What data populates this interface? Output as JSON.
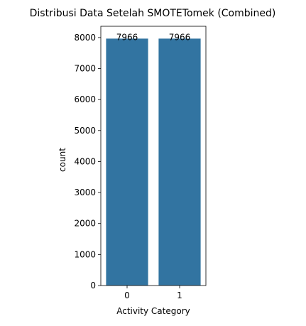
{
  "chart_data": {
    "type": "bar",
    "title": "Distribusi Data Setelah SMOTETomek (Combined)",
    "xlabel": "Activity Category",
    "ylabel": "count",
    "categories": [
      "0",
      "1"
    ],
    "values": [
      7966,
      7966
    ],
    "data_labels": [
      "7966",
      "7966"
    ],
    "yticks": [
      0,
      1000,
      2000,
      3000,
      4000,
      5000,
      6000,
      7000,
      8000
    ],
    "ylim": [
      0,
      8364
    ],
    "bar_color": "#3274a1",
    "grid": false,
    "legend": "none"
  }
}
